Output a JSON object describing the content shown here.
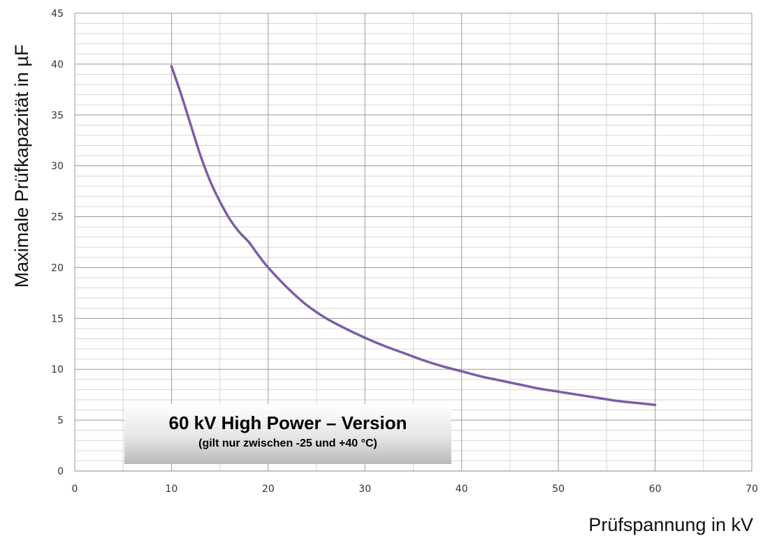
{
  "chart_data": {
    "type": "line",
    "title": "",
    "xlabel": "Prüfspannung in kV",
    "ylabel": "Maximale Prüfkapazität in µF",
    "xlim": [
      0,
      70
    ],
    "ylim": [
      0,
      45
    ],
    "x_ticks": [
      0,
      10,
      20,
      30,
      40,
      50,
      60,
      70
    ],
    "y_ticks": [
      0,
      5,
      10,
      15,
      20,
      25,
      30,
      35,
      40,
      45
    ],
    "x_minor_step": 5,
    "y_minor_step": 1,
    "grid": true,
    "series": [
      {
        "color": "#7b5ea7",
        "x": [
          10,
          11,
          12,
          13,
          14,
          15,
          16,
          17,
          18,
          19,
          20,
          22,
          24,
          26,
          28,
          30,
          32,
          34,
          36,
          38,
          40,
          42,
          44,
          46,
          48,
          50,
          52,
          54,
          56,
          58,
          60
        ],
        "y": [
          39.8,
          37.0,
          34.0,
          31.0,
          28.5,
          26.5,
          24.8,
          23.5,
          22.5,
          21.2,
          20.0,
          18.0,
          16.3,
          15.0,
          14.0,
          13.1,
          12.3,
          11.6,
          10.9,
          10.3,
          9.8,
          9.3,
          8.9,
          8.5,
          8.1,
          7.8,
          7.5,
          7.2,
          6.9,
          6.7,
          6.5
        ]
      }
    ],
    "annotation": {
      "title": "60 kV High Power – Version",
      "subtitle": "(gilt nur zwischen -25 und +40 °C)",
      "position": "bottom-left"
    }
  }
}
